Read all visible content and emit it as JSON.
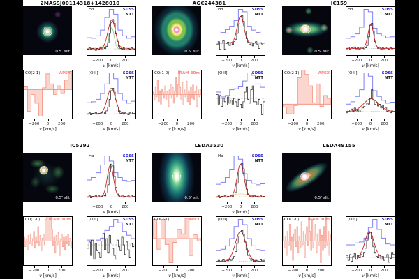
{
  "axis": {
    "var": "v",
    "unit": "[km/s]",
    "ticks": [
      "−200",
      "0",
      "200"
    ],
    "range_kms": [
      -350,
      350
    ]
  },
  "colors": {
    "sdss": "#8080f2",
    "sdss_text": "#2323dd",
    "ntt": "#1a1a1a",
    "fit": "#cc2222",
    "co_line": "#f4907e",
    "co_fill": "#fbd2ca",
    "co_text": "#fa8072",
    "baseline": "#b8b8b8",
    "comp_green": "#7ecf7e",
    "comp_yellow": "#f2d9a0",
    "figure_bg": "#ffffff",
    "page_bg": "#000000"
  },
  "chart_data": {
    "type": "multi-panel-spectra",
    "x_units": "km/s",
    "y_units": "relative flux (fraction of panel height)",
    "blocks": [
      {
        "title": "2MASSJ00114318+1428010",
        "image": {
          "slit": "0.5″ slit"
        },
        "halpha": {
          "label": "Hα",
          "legend": {
            "sdss": "SDSS",
            "ntt": "NTT"
          },
          "baseline": 0.13,
          "sdss": [
            0.36,
            0.35,
            0.4,
            0.52,
            0.78,
            0.95,
            0.85,
            0.52,
            0.4,
            0.35,
            0.38
          ],
          "ntt": [
            0.12,
            0.15,
            0.11,
            0.14,
            0.13,
            0.1,
            0.14,
            0.12,
            0.15,
            0.13,
            0.16,
            0.14,
            0.18,
            0.26,
            0.45,
            0.67,
            0.74,
            0.66,
            0.44,
            0.28,
            0.18,
            0.14,
            0.12,
            0.15,
            0.11,
            0.13,
            0.14,
            0.12,
            0.15,
            0.13,
            0.12
          ],
          "fit": {
            "base": 0.13,
            "amp": 0.6,
            "mu": 5,
            "sigma": 55
          },
          "components": [
            {
              "color": "green",
              "base": 0.13,
              "amp": 0.44,
              "mu": 5,
              "sigma": 35
            },
            {
              "color": "yellow",
              "base": 0.13,
              "amp": 0.08,
              "mu": 0,
              "sigma": 150
            }
          ]
        },
        "co": {
          "label": "CO(2-1)",
          "telescope": "APEX",
          "zero": 0.6,
          "values": [
            0.06,
            -0.45,
            -0.1,
            -0.28,
            -0.55,
            0.04,
            0.33,
            0.12,
            -0.1,
            0.08,
            -0.08,
            0.2,
            0.38
          ]
        },
        "oiii": {
          "label": "[OIII]",
          "legend": {
            "sdss": "SDSS",
            "ntt": "NTT"
          },
          "baseline": 0.1,
          "sdss": [
            0.33,
            0.35,
            0.4,
            0.52,
            0.72,
            0.95,
            0.83,
            0.52,
            0.38,
            0.32,
            0.36
          ],
          "ntt": [
            0.09,
            0.12,
            0.08,
            0.11,
            0.1,
            0.13,
            0.09,
            0.11,
            0.1,
            0.12,
            0.14,
            0.11,
            0.16,
            0.24,
            0.4,
            0.58,
            0.63,
            0.55,
            0.38,
            0.24,
            0.15,
            0.11,
            0.13,
            0.09,
            0.12,
            0.1,
            0.08,
            0.12,
            0.14,
            0.1,
            0.11
          ],
          "fit": {
            "base": 0.1,
            "amp": 0.53,
            "mu": 0,
            "sigma": 60
          }
        }
      },
      {
        "title": "AGC244381",
        "image": {
          "slit": "0.5″ slit"
        },
        "halpha": {
          "label": "Hα",
          "legend": {
            "sdss": "SDSS",
            "ntt": "NTT"
          },
          "baseline": 0.25,
          "sdss": [
            0.5,
            0.47,
            0.53,
            0.6,
            0.72,
            0.95,
            0.9,
            0.6,
            0.52,
            0.47,
            0.5
          ],
          "ntt": [
            0.22,
            0.28,
            0.12,
            0.25,
            0.3,
            0.12,
            0.24,
            0.27,
            0.2,
            0.26,
            0.22,
            0.28,
            0.33,
            0.45,
            0.65,
            0.8,
            0.82,
            0.7,
            0.5,
            0.34,
            0.27,
            0.22,
            0.26,
            0.19,
            0.25,
            0.28,
            0.22,
            0.14,
            0.26,
            0.23,
            0.25
          ],
          "fit": {
            "base": 0.25,
            "amp": 0.56,
            "mu": 0,
            "sigma": 48
          },
          "components": []
        },
        "co": {
          "label": "CO(1-0)",
          "telescope": "IRAM 30m",
          "zero": 0.5,
          "values": [
            0.05,
            -0.1,
            0.15,
            -0.05,
            0.3,
            -0.15,
            0.08,
            -0.2,
            0.12,
            0.05,
            -0.08,
            0.18,
            -0.12,
            0.06,
            -0.25,
            0.1,
            0.22,
            -0.08,
            0.15,
            -0.18,
            0.08,
            0.35,
            -0.05,
            0.2,
            0.75,
            0.15,
            -0.1,
            0.25,
            -0.2,
            0.1,
            -0.05,
            0.28,
            -0.15,
            0.08,
            -0.22,
            0.15,
            -0.08,
            0.2,
            -0.12,
            0.06,
            0.18,
            -0.25,
            0.1,
            -0.05,
            0.12
          ]
        },
        "oiii": {
          "label": "[OIII]",
          "legend": {
            "sdss": "SDSS",
            "ntt": "NTT"
          },
          "baseline": 0.42,
          "baseline_dashed": true,
          "sdss": [
            0.55,
            0.45,
            0.48,
            0.6,
            0.62,
            0.66,
            0.78,
            0.95,
            0.9,
            0.72,
            0.65
          ],
          "ntt": [
            0.5,
            0.3,
            0.48,
            0.25,
            0.42,
            0.35,
            0.28,
            0.45,
            0.32,
            0.38,
            0.3,
            0.42,
            0.35,
            0.25,
            0.4,
            0.3,
            0.22,
            0.35,
            0.55,
            0.65,
            0.4,
            0.32,
            0.6,
            0.68,
            0.35,
            0.35,
            0.28,
            0.4,
            0.3,
            0.08,
            0.35
          ]
        }
      },
      {
        "title": "IC159",
        "image": {
          "slit": "0.5″ slit"
        },
        "halpha": {
          "label": "Hα",
          "legend": {
            "sdss": "SDSS",
            "ntt": "NTT"
          },
          "baseline": 0.14,
          "sdss": [
            0.35,
            0.38,
            0.44,
            0.58,
            0.95,
            0.9,
            0.56,
            0.44,
            0.4,
            0.36,
            0.38
          ],
          "ntt": [
            0.13,
            0.16,
            0.12,
            0.15,
            0.14,
            0.17,
            0.13,
            0.15,
            0.12,
            0.16,
            0.14,
            0.13,
            0.15,
            0.2,
            0.38,
            0.62,
            0.66,
            0.5,
            0.28,
            0.17,
            0.14,
            0.16,
            0.12,
            0.15,
            0.13,
            0.16,
            0.14,
            0.12,
            0.15,
            0.13,
            0.14
          ],
          "fit": {
            "base": 0.14,
            "amp": 0.5,
            "mu": 5,
            "sigma": 40
          },
          "components": []
        },
        "co": {
          "label": "CO(2-1)",
          "telescope": "APEX",
          "zero": 0.3,
          "values": [
            -0.06,
            -0.2,
            -0.2,
            -0.03,
            0.55,
            0.8,
            0.62,
            0.38,
            0.03,
            0.42,
            -0.05,
            0.18,
            0.12
          ]
        },
        "oiii": {
          "label": "[OIII]",
          "legend": {
            "sdss": "SDSS",
            "ntt": "NTT"
          },
          "baseline": 0.15,
          "sdss": [
            0.3,
            0.35,
            0.46,
            0.6,
            0.95,
            0.88,
            0.58,
            0.46,
            0.38,
            0.32,
            0.34
          ],
          "ntt": [
            0.12,
            0.18,
            0.14,
            0.2,
            0.15,
            0.22,
            0.16,
            0.19,
            0.14,
            0.18,
            0.22,
            0.25,
            0.28,
            0.32,
            0.3,
            0.42,
            0.6,
            0.38,
            0.3,
            0.34,
            0.26,
            0.3,
            0.22,
            0.28,
            0.18,
            0.22,
            0.15,
            0.18,
            0.12,
            0.16,
            0.14
          ],
          "fit": {
            "base": 0.15,
            "amp": 0.26,
            "mu": 10,
            "sigma": 110
          }
        }
      },
      {
        "title": "IC5292",
        "image": {
          "slit": "0.5″ slit"
        },
        "halpha": {
          "label": "Hα",
          "legend": {
            "sdss": "SDSS",
            "ntt": "NTT"
          },
          "baseline": 0.1,
          "sdss": [
            0.45,
            0.5,
            0.6,
            0.76,
            0.95,
            0.84,
            0.6,
            0.5,
            0.44,
            0.42,
            0.44
          ],
          "ntt": [
            0.09,
            0.12,
            0.08,
            0.11,
            0.1,
            0.13,
            0.09,
            0.12,
            0.1,
            0.11,
            0.13,
            0.12,
            0.18,
            0.35,
            0.62,
            0.78,
            0.74,
            0.52,
            0.3,
            0.16,
            0.12,
            0.1,
            0.13,
            0.09,
            0.11,
            0.1,
            0.12,
            0.09,
            0.13,
            0.1,
            0.11
          ],
          "fit": {
            "base": 0.1,
            "amp": 0.66,
            "mu": -15,
            "sigma": 45
          },
          "components": []
        },
        "co": {
          "label": "CO(1-0)",
          "telescope": "IRAM 30m",
          "zero": 0.5,
          "values": [
            0.08,
            -0.12,
            0.05,
            -0.18,
            0.12,
            -0.06,
            0.15,
            -0.1,
            0.05,
            0.2,
            -0.15,
            0.08,
            -0.05,
            0.3,
            -0.1,
            0.12,
            -0.2,
            0.06,
            0.15,
            -0.08,
            0.45,
            0.6,
            0.85,
            0.7,
            0.75,
            0.5,
            0.25,
            -0.1,
            0.08,
            -0.25,
            0.12,
            -0.08,
            0.18,
            -0.3,
            0.05,
            0.15,
            -0.12,
            0.08,
            -0.18,
            0.1,
            -0.06,
            0.14,
            -0.1,
            0.06,
            -0.15
          ]
        },
        "oiii": {
          "label": "[OIII]",
          "legend": {
            "sdss": "SDSS",
            "ntt": "NTT"
          },
          "baseline": 0.42,
          "baseline_dashed": true,
          "sdss": [
            0.52,
            0.5,
            0.52,
            0.56,
            0.72,
            0.8,
            0.95,
            0.88,
            0.7,
            0.62,
            0.55
          ],
          "ntt": [
            0.35,
            0.48,
            0.2,
            0.52,
            0.12,
            0.45,
            0.3,
            0.25,
            0.15,
            0.5,
            0.66,
            0.32,
            0.55,
            0.25,
            0.62,
            0.45,
            0.35,
            0.2,
            0.12,
            0.52,
            0.38,
            0.3,
            0.58,
            0.42,
            0.22,
            0.48,
            0.32,
            0.15,
            0.45,
            0.38,
            0.4
          ]
        }
      },
      {
        "title": "LEDA3530",
        "image": {
          "slit": "0.5″ slit"
        },
        "halpha": {
          "label": "Hα",
          "legend": {
            "sdss": "SDSS",
            "ntt": "NTT"
          },
          "baseline": 0.1,
          "sdss": [
            0.36,
            0.4,
            0.5,
            0.66,
            0.95,
            0.88,
            0.58,
            0.44,
            0.38,
            0.35,
            0.37
          ],
          "ntt": [
            0.09,
            0.12,
            0.08,
            0.11,
            0.1,
            0.12,
            0.09,
            0.11,
            0.1,
            0.13,
            0.11,
            0.14,
            0.2,
            0.38,
            0.62,
            0.78,
            0.8,
            0.68,
            0.45,
            0.26,
            0.15,
            0.11,
            0.13,
            0.09,
            0.12,
            0.1,
            0.11,
            0.09,
            0.12,
            0.1,
            0.11
          ],
          "fit": {
            "base": 0.1,
            "amp": 0.68,
            "mu": 0,
            "sigma": 50
          },
          "components": [
            {
              "color": "yellow",
              "base": 0.1,
              "amp": 0.06,
              "mu": 0,
              "sigma": 160
            }
          ]
        },
        "co": {
          "label": "CO(2-1)",
          "telescope": "APEX",
          "zero": 0.55,
          "values": [
            0.4,
            -0.22,
            0.4,
            -0.12,
            -0.5,
            -0.08,
            0.18,
            0.1,
            0.42,
            -0.35,
            0.08,
            -0.05
          ]
        },
        "oiii": {
          "label": "[OIII]",
          "legend": {
            "sdss": "SDSS",
            "ntt": "NTT"
          },
          "baseline": 0.08,
          "sdss": [
            0.3,
            0.33,
            0.4,
            0.55,
            0.8,
            0.95,
            0.84,
            0.55,
            0.4,
            0.32,
            0.3
          ],
          "ntt": [
            0.07,
            0.1,
            0.08,
            0.09,
            0.11,
            0.08,
            0.1,
            0.09,
            0.11,
            0.1,
            0.13,
            0.18,
            0.28,
            0.45,
            0.6,
            0.7,
            0.72,
            0.64,
            0.48,
            0.32,
            0.2,
            0.13,
            0.1,
            0.11,
            0.08,
            0.1,
            0.09,
            0.08,
            0.11,
            0.09,
            0.1
          ],
          "fit": {
            "base": 0.08,
            "amp": 0.62,
            "mu": 0,
            "sigma": 75
          }
        }
      },
      {
        "title": "LEDA49155",
        "image": {
          "slit": "0.5″ slit"
        },
        "halpha": null,
        "co": {
          "label": "CO(1-0)",
          "telescope": "IRAM 30m",
          "zero": 0.5,
          "values": [
            0.45,
            -0.15,
            0.1,
            -0.3,
            0.2,
            -0.1,
            0.35,
            -0.2,
            0.08,
            -0.4,
            0.15,
            0.25,
            -0.12,
            0.3,
            -0.25,
            0.1,
            -0.15,
            0.4,
            -0.08,
            0.2,
            -0.35,
            0.15,
            0.3,
            -0.1,
            0.5,
            0.2,
            -0.2,
            0.45,
            -0.15,
            0.1,
            0.35,
            -0.25,
            0.15,
            -0.1,
            0.25,
            -0.45,
            0.12,
            -0.2,
            0.3,
            -0.15,
            0.55,
            -0.1,
            0.2,
            -0.3,
            0.15
          ]
        },
        "oiii": {
          "label": "[OIII]",
          "legend": {
            "sdss": "SDSS",
            "ntt": "NTT"
          },
          "baseline": 0.16,
          "sdss": [
            0.42,
            0.42,
            0.46,
            0.48,
            0.56,
            0.78,
            0.95,
            0.74,
            0.56,
            0.44,
            0.42
          ],
          "ntt": [
            0.2,
            0.1,
            0.22,
            0.08,
            0.18,
            0.24,
            0.12,
            0.2,
            0.15,
            0.22,
            0.18,
            0.25,
            0.35,
            0.52,
            0.66,
            0.68,
            0.55,
            0.38,
            0.25,
            0.18,
            0.15,
            0.2,
            0.12,
            0.18,
            0.1,
            0.16,
            0.22,
            0.06,
            0.14,
            0.25,
            0.22
          ],
          "fit": {
            "base": 0.16,
            "amp": 0.54,
            "mu": -15,
            "sigma": 65
          }
        }
      }
    ]
  }
}
